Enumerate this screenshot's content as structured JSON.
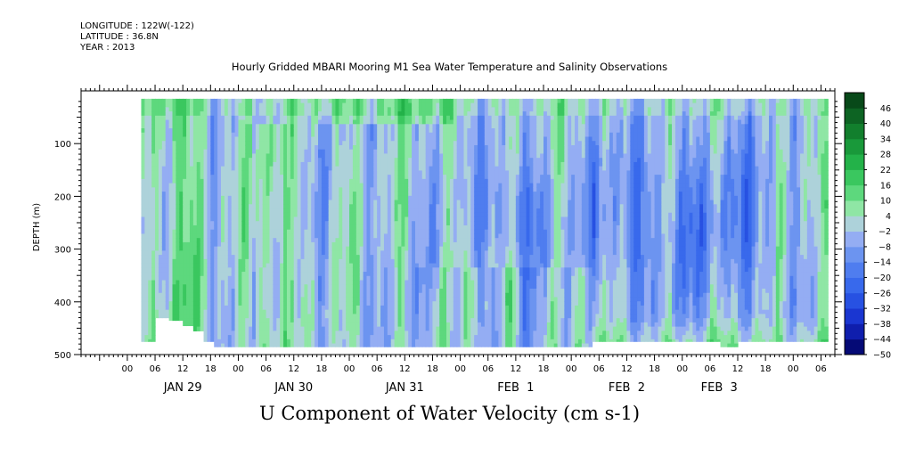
{
  "header": {
    "longitude": "LONGITUDE : 122W(-122)",
    "latitude": "LATITUDE : 36.8N",
    "year": "YEAR : 2013"
  },
  "chart_data": {
    "type": "heatmap",
    "title": "Hourly Gridded MBARI Mooring M1 Sea Water Temperature and Salinity Observations",
    "subtitle": "U Component of Water Velocity (cm s-1)",
    "ylabel": "DEPTH (m)",
    "xlabel": "",
    "ylim": [
      500,
      0
    ],
    "yticks": [
      100,
      200,
      300,
      400,
      500
    ],
    "xlim_hours": [
      -10,
      153
    ],
    "hour_ticks": [
      {
        "h": 0,
        "label": "00"
      },
      {
        "h": 6,
        "label": "06"
      },
      {
        "h": 12,
        "label": "12"
      },
      {
        "h": 18,
        "label": "18"
      },
      {
        "h": 24,
        "label": "00"
      },
      {
        "h": 30,
        "label": "06"
      },
      {
        "h": 36,
        "label": "12"
      },
      {
        "h": 42,
        "label": "18"
      },
      {
        "h": 48,
        "label": "00"
      },
      {
        "h": 54,
        "label": "06"
      },
      {
        "h": 60,
        "label": "12"
      },
      {
        "h": 66,
        "label": "18"
      },
      {
        "h": 72,
        "label": "00"
      },
      {
        "h": 78,
        "label": "06"
      },
      {
        "h": 84,
        "label": "12"
      },
      {
        "h": 90,
        "label": "18"
      },
      {
        "h": 96,
        "label": "00"
      },
      {
        "h": 102,
        "label": "06"
      },
      {
        "h": 108,
        "label": "12"
      },
      {
        "h": 114,
        "label": "18"
      },
      {
        "h": 120,
        "label": "00"
      },
      {
        "h": 126,
        "label": "06"
      },
      {
        "h": 132,
        "label": "12"
      },
      {
        "h": 138,
        "label": "18"
      },
      {
        "h": 144,
        "label": "00"
      },
      {
        "h": 150,
        "label": "06"
      }
    ],
    "day_labels": [
      {
        "h": 12,
        "label": "JAN 29"
      },
      {
        "h": 36,
        "label": "JAN 30"
      },
      {
        "h": 60,
        "label": "JAN 31"
      },
      {
        "h": 84,
        "label": "FEB  1"
      },
      {
        "h": 108,
        "label": "FEB  2"
      },
      {
        "h": 128,
        "label": "FEB  3"
      }
    ],
    "data_start_hour": 3,
    "colorbar": {
      "labels": [
        "46",
        "40",
        "34",
        "28",
        "22",
        "16",
        "10",
        "4",
        "-2",
        "-8",
        "-14",
        "-20",
        "-26",
        "-32",
        "-38",
        "-44",
        "-50"
      ],
      "min": -50,
      "max": 52,
      "step": 6,
      "legend": "right"
    },
    "value_field_description_free": true,
    "value_regions": [
      {
        "hour_start": 3,
        "hour_end": 140,
        "depth_top": 15,
        "depth_bottom": 485,
        "typical_value": -5
      },
      {
        "hour_start": 3,
        "hour_end": 18,
        "depth_top": 15,
        "depth_bottom": 460,
        "typical_value": 8
      },
      {
        "hour_start": 28,
        "hour_end": 33,
        "depth_top": 60,
        "depth_bottom": 480,
        "typical_value": 6
      },
      {
        "hour_start": 76,
        "hour_end": 92,
        "depth_top": 120,
        "depth_bottom": 320,
        "typical_value": -22
      },
      {
        "hour_start": 102,
        "hour_end": 140,
        "depth_top": 20,
        "depth_bottom": 420,
        "typical_value": -18
      }
    ]
  }
}
